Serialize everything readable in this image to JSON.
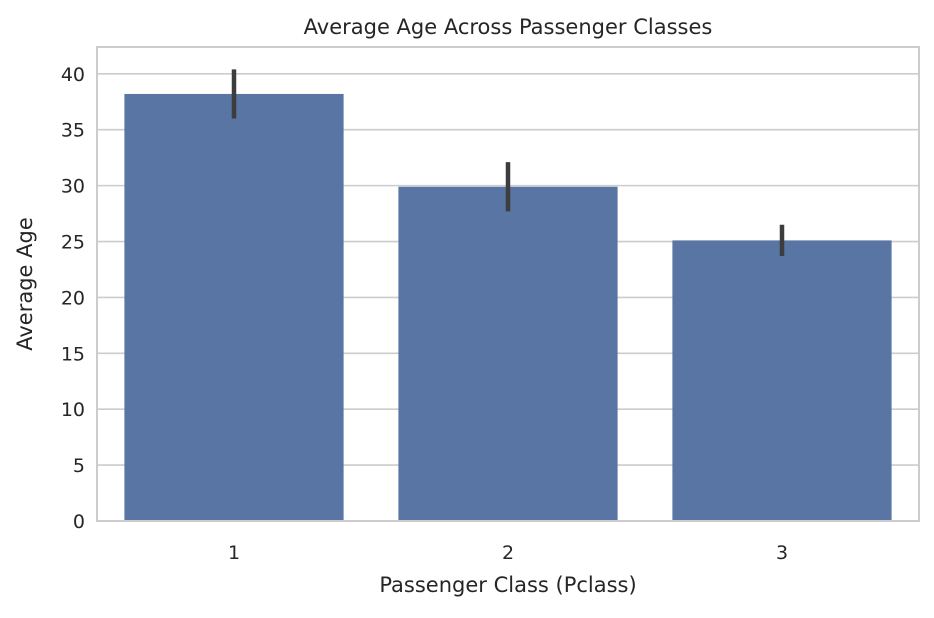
{
  "chart_data": {
    "type": "bar",
    "title": "Average Age Across Passenger Classes",
    "xlabel": "Passenger Class (Pclass)",
    "ylabel": "Average Age",
    "categories": [
      "1",
      "2",
      "3"
    ],
    "values": [
      38.2,
      29.9,
      25.1
    ],
    "error_bars": [
      {
        "low": 36.0,
        "high": 40.4
      },
      {
        "low": 27.7,
        "high": 32.1
      },
      {
        "low": 23.7,
        "high": 26.5
      }
    ],
    "ylim": [
      0,
      42.4
    ],
    "yticks": [
      0,
      5,
      10,
      15,
      20,
      25,
      30,
      35,
      40
    ],
    "grid": true,
    "colors": {
      "bar": "#5975a4",
      "error_bar": "#3d3d3d",
      "grid": "#cccccc"
    }
  }
}
